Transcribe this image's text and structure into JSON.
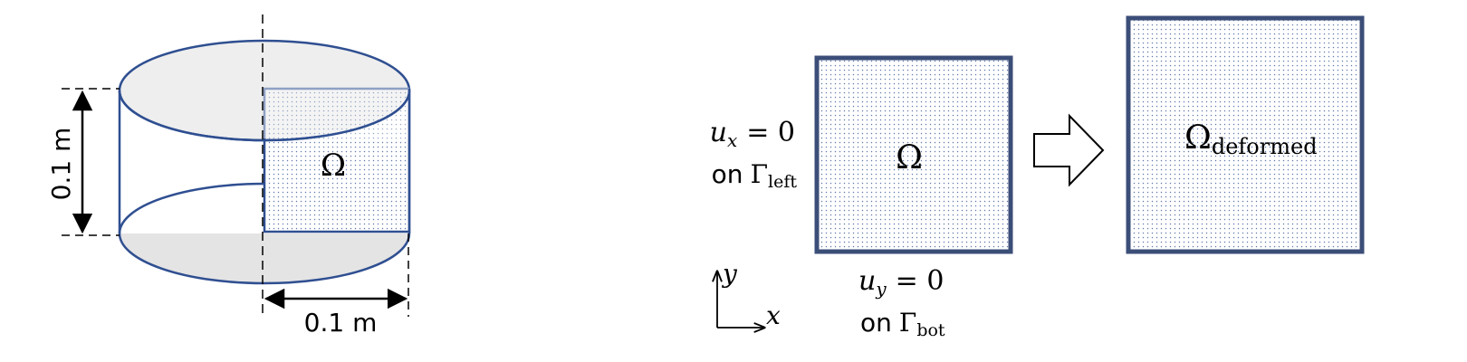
{
  "colors": {
    "outline": "#2f4f91",
    "dots": "#2f4f91",
    "ellipse_fill_top": "#eeeeee",
    "ellipse_fill_bottom": "#e4e4e4",
    "black": "#000000"
  },
  "cylinder": {
    "height_label": "0.1 m",
    "radius_label": "0.1 m",
    "domain_label": "Ω"
  },
  "domain": {
    "label": "Ω",
    "bc_left": {
      "var": "u",
      "sub": "x",
      "eq": "= 0",
      "on": "on",
      "gamma": "Γ",
      "gamma_sub": "left"
    },
    "bc_bottom": {
      "var": "u",
      "sub": "y",
      "eq": "= 0",
      "on": "on",
      "gamma": "Γ",
      "gamma_sub": "bot"
    },
    "axis_y": "y",
    "axis_x": "x"
  },
  "deformed": {
    "label": "Ω",
    "label_sub": "deformed"
  },
  "arrow_icon": "block-right-arrow-icon"
}
